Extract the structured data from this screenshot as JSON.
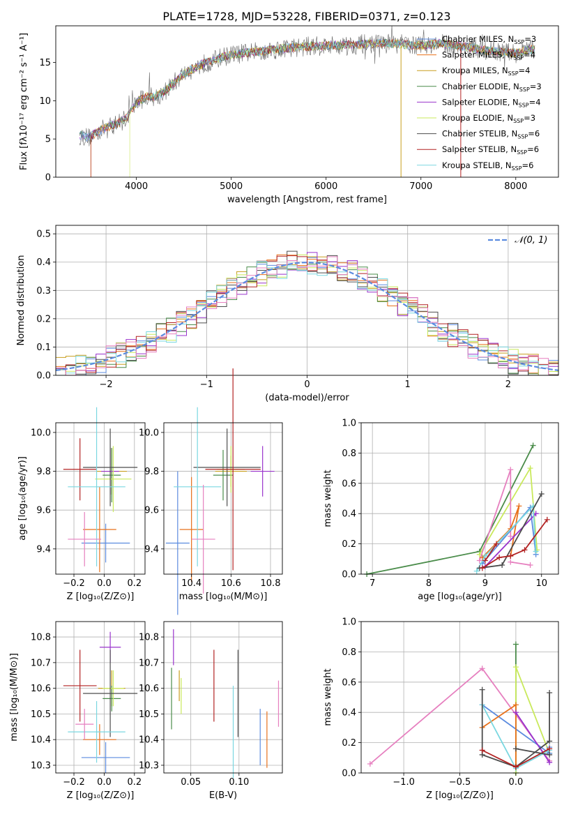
{
  "colors": {
    "chabrier_miles": "#5b8bdf",
    "salpeter_miles": "#e8701a",
    "kroupa_miles": "#c89e1e",
    "chabrier_elodie": "#4a8c4a",
    "salpeter_elodie": "#9932cc",
    "kroupa_elodie": "#c9e95b",
    "chabrier_stelib": "#4c4c4c",
    "salpeter_stelib": "#b22222",
    "kroupa_stelib": "#7ad7e0",
    "normal_fit": "#5b8bdf",
    "pink": "#e67fbf",
    "grid": "#b0b0b0"
  },
  "chart_data": [
    {
      "id": "spectrum",
      "type": "line",
      "title": "PLATE=1728, MJD=53228, FIBERID=0371, z=0.123",
      "xlabel": "wavelength [Angstrom, rest frame]",
      "ylabel": "Flux [fλ10⁻¹⁷ erg cm⁻² s⁻¹ A⁻¹]",
      "xlim": [
        3150,
        8450
      ],
      "ylim": [
        0,
        19.8
      ],
      "xticks": [
        4000,
        5000,
        6000,
        7000,
        8000
      ],
      "yticks": [
        0,
        5,
        10,
        15
      ],
      "grid": false,
      "legend_position": "top-right",
      "legend": [
        {
          "label": "Chabrier MILES, N",
          "sub": "SSP",
          "value": "=3",
          "color_key": "chabrier_miles"
        },
        {
          "label": "Salpeter MILES, N",
          "sub": "SSP",
          "value": "=4",
          "color_key": "salpeter_miles"
        },
        {
          "label": "Kroupa MILES, N",
          "sub": "SSP",
          "value": "=4",
          "color_key": "kroupa_miles"
        },
        {
          "label": "Chabrier ELODIE, N",
          "sub": "SSP",
          "value": "=3",
          "color_key": "chabrier_elodie"
        },
        {
          "label": "Salpeter ELODIE, N",
          "sub": "SSP",
          "value": "=4",
          "color_key": "salpeter_elodie"
        },
        {
          "label": "Kroupa ELODIE, N",
          "sub": "SSP",
          "value": "=3",
          "color_key": "kroupa_elodie"
        },
        {
          "label": "Chabrier STELIB, N",
          "sub": "SSP",
          "value": "=6",
          "color_key": "chabrier_stelib"
        },
        {
          "label": "Salpeter STELIB, N",
          "sub": "SSP",
          "value": "=6",
          "color_key": "salpeter_stelib"
        },
        {
          "label": "Kroupa STELIB, N",
          "sub": "SSP",
          "value": "=6",
          "color_key": "kroupa_stelib"
        }
      ],
      "continuum": {
        "x": [
          3400,
          3500,
          3600,
          3700,
          3800,
          3900,
          4000,
          4100,
          4200,
          4300,
          4400,
          4500,
          4600,
          4700,
          4800,
          4900,
          5000,
          5200,
          5400,
          5600,
          5800,
          6000,
          6200,
          6400,
          6600,
          6800,
          7000,
          7200,
          7400,
          7600,
          7800,
          8000,
          8200
        ],
        "y": [
          5.5,
          5.2,
          6.0,
          6.6,
          7.0,
          7.8,
          9.8,
          10.5,
          10.6,
          11.2,
          12.4,
          13.5,
          14.2,
          14.8,
          15.2,
          15.7,
          16.0,
          16.3,
          16.6,
          16.9,
          17.1,
          17.2,
          17.3,
          17.4,
          17.5,
          17.4,
          17.2,
          17.5,
          17.2,
          16.8,
          16.4,
          16.2,
          16.8
        ]
      }
    },
    {
      "id": "residuals",
      "type": "line",
      "xlabel": "(data-model)/error",
      "ylabel": "Normed distribution",
      "xlim": [
        -2.5,
        2.5
      ],
      "ylim": [
        0,
        0.53
      ],
      "xticks": [
        -2,
        -1,
        0,
        1,
        2
      ],
      "xticklabels": [
        "−2",
        "−1",
        "0",
        "1",
        "2"
      ],
      "yticks": [
        0.0,
        0.1,
        0.2,
        0.3,
        0.4,
        0.5
      ],
      "yticklabels": [
        "0.0",
        "0.1",
        "0.2",
        "0.3",
        "0.4",
        "0.5"
      ],
      "grid": true,
      "legend_position": "top-right",
      "legend": [
        {
          "label": "𝒩(0, 1)",
          "color_key": "normal_fit"
        }
      ]
    },
    {
      "id": "z_age",
      "type": "scatter",
      "xlabel": "Z [log₁₀(Z/Z⊙)]",
      "ylabel": "age  [log₁₀(age/yr)]",
      "xlim": [
        -0.32,
        0.27
      ],
      "ylim": [
        9.27,
        10.05
      ],
      "xticks": [
        -0.2,
        0.0,
        0.2
      ],
      "xticklabels": [
        "−0.2",
        "0.0",
        "0.2"
      ],
      "yticks": [
        9.4,
        9.6,
        9.8,
        10.0
      ],
      "yticklabels": [
        "9.4",
        "9.6",
        "9.8",
        "10.0"
      ],
      "grid": true,
      "points": [
        {
          "x": 0.01,
          "y": 9.43,
          "xerr": 0.16,
          "yerr": 0.1,
          "color_key": "chabrier_miles"
        },
        {
          "x": -0.03,
          "y": 9.5,
          "xerr": 0.11,
          "yerr": 0.22,
          "color_key": "salpeter_miles"
        },
        {
          "x": 0.05,
          "y": 9.8,
          "xerr": 0.1,
          "yerr": 0.12,
          "color_key": "kroupa_miles"
        },
        {
          "x": 0.05,
          "y": 9.78,
          "xerr": 0.06,
          "yerr": 0.14,
          "color_key": "chabrier_elodie"
        },
        {
          "x": 0.04,
          "y": 9.8,
          "xerr": 0.06,
          "yerr": 0.12,
          "color_key": "salpeter_elodie"
        },
        {
          "x": 0.06,
          "y": 9.76,
          "xerr": 0.12,
          "yerr": 0.17,
          "color_key": "kroupa_elodie"
        },
        {
          "x": 0.04,
          "y": 9.82,
          "xerr": 0.18,
          "yerr": 0.2,
          "color_key": "chabrier_stelib"
        },
        {
          "x": -0.16,
          "y": 9.81,
          "xerr": 0.11,
          "yerr": 0.16,
          "color_key": "salpeter_stelib"
        },
        {
          "x": -0.05,
          "y": 9.72,
          "xerr": 0.19,
          "yerr": 0.41,
          "color_key": "kroupa_stelib"
        },
        {
          "x": -0.13,
          "y": 9.45,
          "xerr": 0.11,
          "yerr": 0.14,
          "color_key": "pink"
        }
      ]
    },
    {
      "id": "mass_age",
      "type": "scatter",
      "xlabel": "mass [log₁₀(M/M⊙)]",
      "ylabel": "",
      "xlim": [
        10.26,
        10.86
      ],
      "ylim": [
        9.27,
        10.05
      ],
      "xticks": [
        10.4,
        10.6,
        10.8
      ],
      "xticklabels": [
        "10.4",
        "10.6",
        "10.8"
      ],
      "yticks": [
        9.4,
        9.6,
        9.8,
        10.0
      ],
      "yticklabels": [
        "9.4",
        "9.6",
        "9.8",
        "10.0"
      ],
      "grid": true,
      "points": [
        {
          "x": 10.33,
          "y": 9.43,
          "xerr": 0.06,
          "yerr": 0.37,
          "color_key": "chabrier_miles"
        },
        {
          "x": 10.4,
          "y": 9.5,
          "xerr": 0.06,
          "yerr": 0.27,
          "color_key": "salpeter_miles"
        },
        {
          "x": 10.6,
          "y": 9.8,
          "xerr": 0.08,
          "yerr": 0.08,
          "color_key": "kroupa_miles"
        },
        {
          "x": 10.56,
          "y": 9.78,
          "xerr": 0.05,
          "yerr": 0.13,
          "color_key": "chabrier_elodie"
        },
        {
          "x": 10.76,
          "y": 9.8,
          "xerr": 0.06,
          "yerr": 0.13,
          "color_key": "salpeter_elodie"
        },
        {
          "x": 10.6,
          "y": 9.81,
          "xerr": 0.07,
          "yerr": 0.12,
          "color_key": "kroupa_elodie"
        },
        {
          "x": 10.58,
          "y": 9.82,
          "xerr": 0.17,
          "yerr": 0.2,
          "color_key": "chabrier_stelib"
        },
        {
          "x": 10.61,
          "y": 9.81,
          "xerr": 0.14,
          "yerr": 0.52,
          "color_key": "salpeter_stelib"
        },
        {
          "x": 10.43,
          "y": 9.72,
          "xerr": 0.12,
          "yerr": 0.41,
          "color_key": "kroupa_stelib"
        },
        {
          "x": 10.46,
          "y": 9.45,
          "xerr": 0.06,
          "yerr": 0.28,
          "color_key": "pink"
        }
      ]
    },
    {
      "id": "age_weight",
      "type": "line",
      "xlabel": "age  [log₁₀(age/yr)]",
      "ylabel": "mass weight",
      "xlim": [
        6.8,
        10.3
      ],
      "ylim": [
        0,
        1.0
      ],
      "xticks": [
        7,
        8,
        9,
        10
      ],
      "xticklabels": [
        "7",
        "8",
        "9",
        "10"
      ],
      "yticks": [
        0.0,
        0.2,
        0.4,
        0.6,
        0.8,
        1.0
      ],
      "yticklabels": [
        "0.0",
        "0.2",
        "0.4",
        "0.6",
        "0.8",
        "1.0"
      ],
      "grid": true,
      "series": [
        {
          "color_key": "chabrier_elodie",
          "x": [
            6.9,
            8.9,
            9.85
          ],
          "y": [
            0.0,
            0.15,
            0.85
          ]
        },
        {
          "color_key": "kroupa_elodie",
          "x": [
            8.9,
            9.8,
            9.92
          ],
          "y": [
            0.13,
            0.7,
            0.16
          ]
        },
        {
          "color_key": "pink",
          "x": [
            8.9,
            9.45,
            9.45
          ],
          "y": [
            0.09,
            0.69,
            0.25
          ]
        },
        {
          "color_key": "salpeter_miles",
          "x": [
            8.95,
            9.45,
            9.6,
            9.45
          ],
          "y": [
            0.11,
            0.3,
            0.45,
            0.12
          ]
        },
        {
          "color_key": "chabrier_miles",
          "x": [
            8.95,
            9.8,
            9.9
          ],
          "y": [
            0.07,
            0.44,
            0.13
          ]
        },
        {
          "color_key": "salpeter_elodie",
          "x": [
            9.0,
            9.9
          ],
          "y": [
            0.05,
            0.4
          ]
        },
        {
          "color_key": "kroupa_stelib",
          "x": [
            8.85,
            9.0,
            9.85,
            9.9
          ],
          "y": [
            0.02,
            0.12,
            0.45,
            0.15
          ]
        },
        {
          "color_key": "chabrier_stelib",
          "x": [
            8.9,
            9.3,
            10.0
          ],
          "y": [
            0.04,
            0.06,
            0.53
          ]
        },
        {
          "color_key": "salpeter_stelib",
          "x": [
            8.95,
            9.25,
            9.45,
            9.7,
            10.1
          ],
          "y": [
            0.04,
            0.11,
            0.12,
            0.16,
            0.36
          ]
        },
        {
          "color_key": "salpeter_stelib",
          "x": [
            9.0,
            9.2
          ],
          "y": [
            0.09,
            0.2
          ]
        },
        {
          "color_key": "pink",
          "x": [
            9.45,
            9.8
          ],
          "y": [
            0.08,
            0.06
          ]
        }
      ]
    },
    {
      "id": "z_mass",
      "type": "scatter",
      "xlabel": "Z [log₁₀(Z/Z⊙)]",
      "ylabel": "mass [log₁₀(M/M⊙)]",
      "xlim": [
        -0.32,
        0.27
      ],
      "ylim": [
        10.27,
        10.86
      ],
      "xticks": [
        -0.2,
        0.0,
        0.2
      ],
      "xticklabels": [
        "−0.2",
        "0.0",
        "0.2"
      ],
      "yticks": [
        10.3,
        10.4,
        10.5,
        10.6,
        10.7,
        10.8
      ],
      "yticklabels": [
        "10.3",
        "10.4",
        "10.5",
        "10.6",
        "10.7",
        "10.8"
      ],
      "grid": true,
      "points": [
        {
          "x": 0.01,
          "y": 10.33,
          "xerr": 0.16,
          "yerr": 0.06,
          "color_key": "chabrier_miles"
        },
        {
          "x": -0.03,
          "y": 10.4,
          "xerr": 0.11,
          "yerr": 0.06,
          "color_key": "salpeter_miles"
        },
        {
          "x": 0.05,
          "y": 10.6,
          "xerr": 0.09,
          "yerr": 0.07,
          "color_key": "kroupa_miles"
        },
        {
          "x": 0.05,
          "y": 10.56,
          "xerr": 0.06,
          "yerr": 0.05,
          "color_key": "chabrier_elodie"
        },
        {
          "x": 0.04,
          "y": 10.76,
          "xerr": 0.07,
          "yerr": 0.06,
          "color_key": "salpeter_elodie"
        },
        {
          "x": 0.06,
          "y": 10.6,
          "xerr": 0.07,
          "yerr": 0.07,
          "color_key": "kroupa_elodie"
        },
        {
          "x": 0.04,
          "y": 10.58,
          "xerr": 0.18,
          "yerr": 0.17,
          "color_key": "chabrier_stelib"
        },
        {
          "x": -0.16,
          "y": 10.61,
          "xerr": 0.11,
          "yerr": 0.14,
          "color_key": "salpeter_stelib"
        },
        {
          "x": -0.05,
          "y": 10.43,
          "xerr": 0.19,
          "yerr": 0.12,
          "color_key": "kroupa_stelib"
        },
        {
          "x": -0.13,
          "y": 10.46,
          "xerr": 0.06,
          "yerr": 0.06,
          "color_key": "pink"
        }
      ]
    },
    {
      "id": "ebv_mass",
      "type": "scatter",
      "xlabel": "E(B-V)",
      "ylabel": "",
      "xlim": [
        0.022,
        0.145
      ],
      "ylim": [
        10.27,
        10.86
      ],
      "xticks": [
        0.05,
        0.1
      ],
      "xticklabels": [
        "0.05",
        "0.10"
      ],
      "yticks": [
        10.3,
        10.4,
        10.5,
        10.6,
        10.7,
        10.8
      ],
      "yticklabels": [
        "10.3",
        "10.4",
        "10.5",
        "10.6",
        "10.7",
        "10.8"
      ],
      "grid": true,
      "points": [
        {
          "x": 0.122,
          "y": 10.41,
          "yerr": 0.11,
          "color_key": "chabrier_miles"
        },
        {
          "x": 0.129,
          "y": 10.4,
          "yerr": 0.11,
          "color_key": "salpeter_miles"
        },
        {
          "x": 0.038,
          "y": 10.61,
          "yerr": 0.06,
          "color_key": "kroupa_miles"
        },
        {
          "x": 0.03,
          "y": 10.56,
          "yerr": 0.12,
          "color_key": "chabrier_elodie"
        },
        {
          "x": 0.032,
          "y": 10.76,
          "yerr": 0.07,
          "color_key": "salpeter_elodie"
        },
        {
          "x": 0.04,
          "y": 10.57,
          "yerr": 0.07,
          "color_key": "kroupa_elodie"
        },
        {
          "x": 0.099,
          "y": 10.58,
          "yerr": 0.17,
          "color_key": "chabrier_stelib"
        },
        {
          "x": 0.074,
          "y": 10.61,
          "yerr": 0.14,
          "color_key": "salpeter_stelib"
        },
        {
          "x": 0.094,
          "y": 10.43,
          "yerr": 0.18,
          "color_key": "kroupa_stelib"
        },
        {
          "x": 0.141,
          "y": 10.54,
          "yerr": 0.09,
          "color_key": "pink"
        }
      ]
    },
    {
      "id": "z_weight",
      "type": "line",
      "xlabel": "Z [log₁₀(Z/Z⊙)]",
      "ylabel": "mass weight",
      "xlim": [
        -1.38,
        0.38
      ],
      "ylim": [
        0,
        1.0
      ],
      "xticks": [
        -1.0,
        -0.5,
        0.0
      ],
      "xticklabels": [
        "−1.0",
        "−0.5",
        "0.0"
      ],
      "yticks": [
        0.0,
        0.2,
        0.4,
        0.6,
        0.8,
        1.0
      ],
      "yticklabels": [
        "0.0",
        "0.2",
        "0.4",
        "0.6",
        "0.8",
        "1.0"
      ],
      "grid": true,
      "series": [
        {
          "color_key": "pink",
          "x": [
            -1.3,
            -0.3,
            0.3
          ],
          "y": [
            0.06,
            0.69,
            0.08
          ]
        },
        {
          "color_key": "chabrier_elodie",
          "x": [
            -0.0,
            -0.0
          ],
          "y": [
            0.0,
            0.85
          ]
        },
        {
          "color_key": "kroupa_elodie",
          "x": [
            -0.0,
            -0.0,
            0.3
          ],
          "y": [
            0.0,
            0.7,
            0.13
          ]
        },
        {
          "color_key": "chabrier_miles",
          "x": [
            -0.3,
            0.3,
            0.3
          ],
          "y": [
            0.45,
            0.13,
            0.17
          ]
        },
        {
          "color_key": "salpeter_miles",
          "x": [
            -0.3,
            0.0,
            0.0
          ],
          "y": [
            0.3,
            0.45,
            0.05
          ]
        },
        {
          "color_key": "salpeter_elodie",
          "x": [
            0.0,
            0.3
          ],
          "y": [
            0.4,
            0.07
          ]
        },
        {
          "color_key": "kroupa_stelib",
          "x": [
            -0.3,
            0.0,
            0.3
          ],
          "y": [
            0.45,
            0.03,
            0.15
          ]
        },
        {
          "color_key": "chabrier_stelib",
          "x": [
            -0.3,
            -0.3,
            0.0,
            0.3,
            0.3
          ],
          "y": [
            0.55,
            0.12,
            0.04,
            0.21,
            0.53
          ]
        },
        {
          "color_key": "salpeter_stelib",
          "x": [
            -0.3,
            0.0,
            0.3
          ],
          "y": [
            0.15,
            0.04,
            0.16
          ]
        },
        {
          "color_key": "chabrier_stelib",
          "x": [
            0.0,
            0.3
          ],
          "y": [
            0.16,
            0.12
          ]
        }
      ]
    }
  ]
}
